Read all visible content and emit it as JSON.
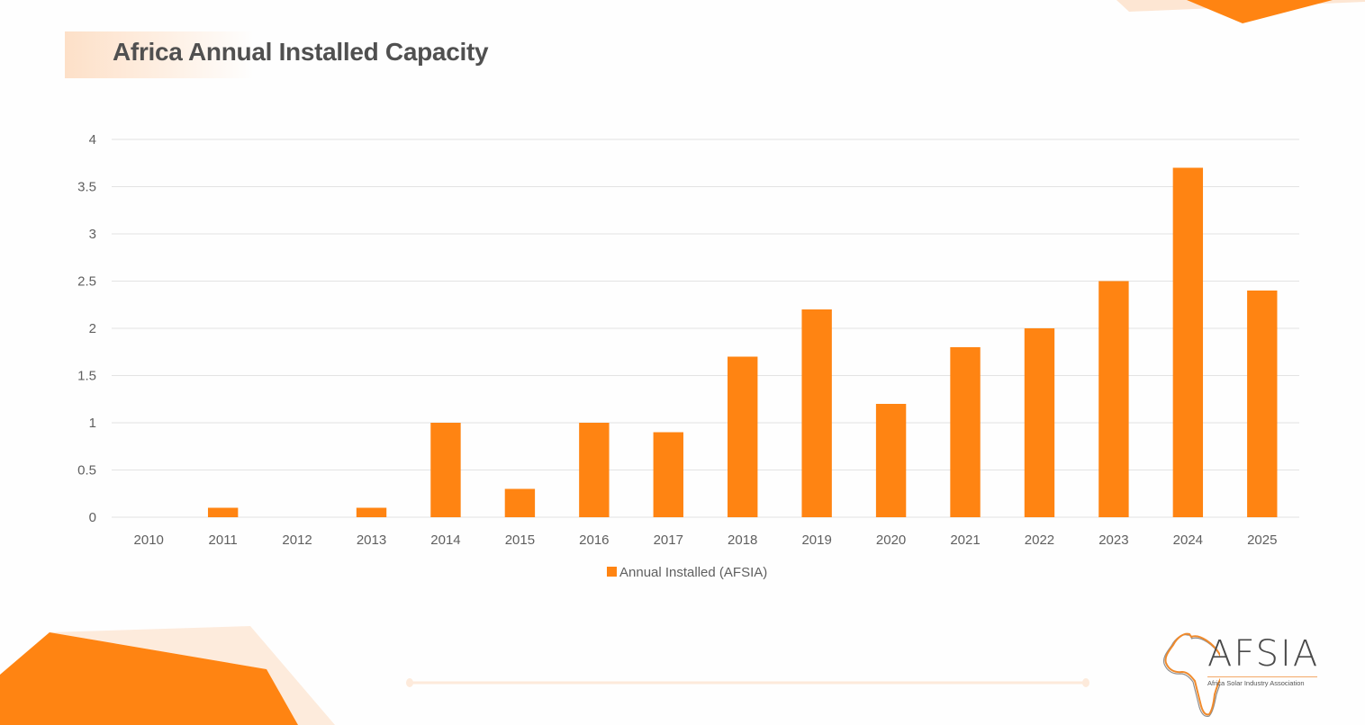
{
  "slide": {
    "title": "Africa Annual Installed Capacity",
    "brand_color": "#ff8412",
    "light_accent": "#fde8d6"
  },
  "logo": {
    "name": "AFSIA",
    "tagline": "Africa Solar Industry Association"
  },
  "chart_data": {
    "type": "bar",
    "title": "",
    "xlabel": "",
    "ylabel": "",
    "categories": [
      "2010",
      "2011",
      "2012",
      "2013",
      "2014",
      "2015",
      "2016",
      "2017",
      "2018",
      "2019",
      "2020",
      "2021",
      "2022",
      "2023",
      "2024",
      "2025"
    ],
    "series": [
      {
        "name": "Annual Installed (AFSIA)",
        "color": "#ff8412",
        "values": [
          0,
          0.1,
          0,
          0.1,
          1.0,
          0.3,
          1.0,
          0.9,
          1.7,
          2.2,
          1.2,
          1.8,
          2.0,
          2.5,
          3.7,
          2.4
        ]
      }
    ],
    "ylim": [
      0,
      4
    ],
    "yticks": [
      "0",
      "0.5",
      "1",
      "1.5",
      "2",
      "2.5",
      "3",
      "3.5",
      "4"
    ],
    "grid": true,
    "legend": "bottom-center"
  }
}
